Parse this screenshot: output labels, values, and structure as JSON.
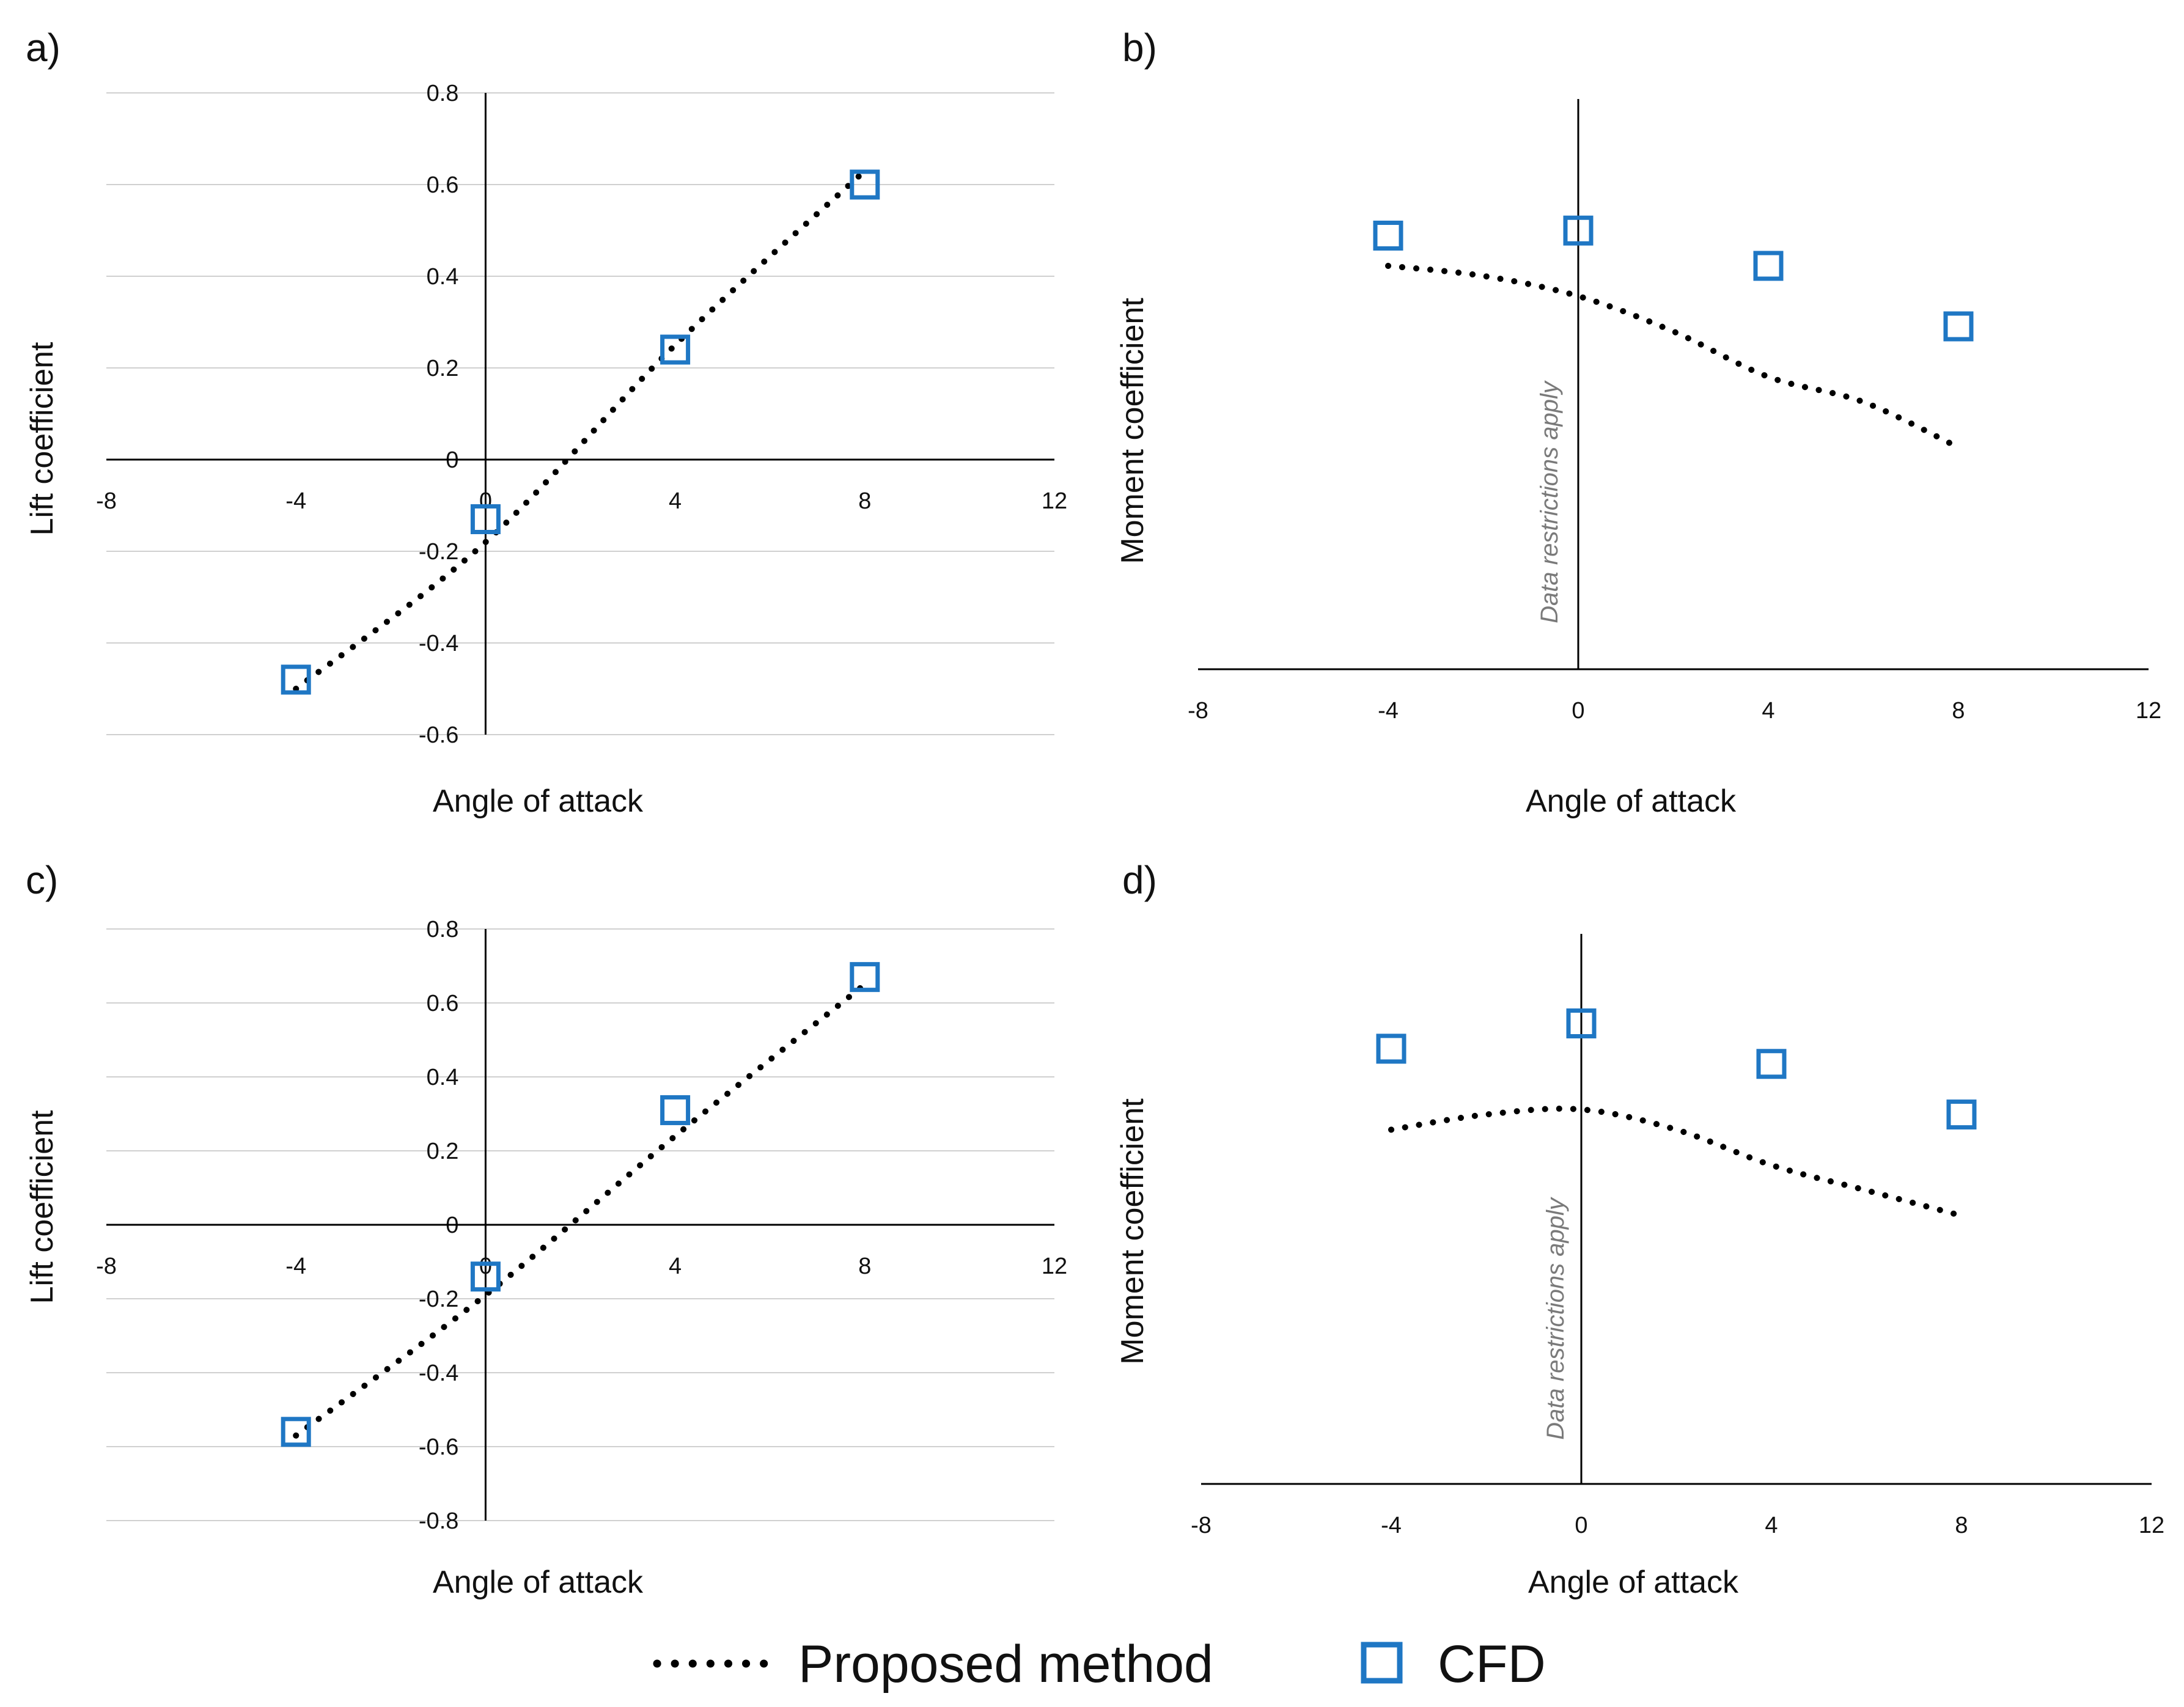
{
  "colors": {
    "cfd": "#1f77c4",
    "proposed": "#000000",
    "grid": "#d0d0d0",
    "axis": "#000000",
    "note": "#7a7a7a"
  },
  "legend": {
    "proposed_label": "Proposed method",
    "cfd_label": "CFD"
  },
  "chart_data": [
    {
      "id": "a",
      "type": "scatter",
      "panel_label": "a)",
      "xlabel": "Angle of attack",
      "ylabel": "Lift coefficient",
      "xlim": [
        -8,
        12
      ],
      "ylim": [
        -0.6,
        0.8
      ],
      "xticks": [
        -8,
        -4,
        0,
        4,
        8,
        12
      ],
      "yticks": [
        -0.6,
        -0.4,
        -0.2,
        0,
        0.2,
        0.4,
        0.6,
        0.8
      ],
      "grid": true,
      "note": "",
      "series": [
        {
          "name": "Proposed method",
          "style": "dotted-line",
          "x": [
            -4,
            0,
            4,
            8
          ],
          "y": [
            -0.5,
            -0.18,
            0.25,
            0.63
          ]
        },
        {
          "name": "CFD",
          "style": "square-marker",
          "x": [
            -4,
            0,
            4,
            8
          ],
          "y": [
            -0.48,
            -0.13,
            0.24,
            0.6
          ]
        }
      ]
    },
    {
      "id": "b",
      "type": "scatter",
      "panel_label": "b)",
      "xlabel": "Angle of attack",
      "ylabel": "Moment coefficient",
      "xlim": [
        -8,
        12
      ],
      "ylim": [
        0,
        1
      ],
      "xticks": [
        -8,
        -4,
        0,
        4,
        8,
        12
      ],
      "yticks": [],
      "grid": false,
      "note": "Data restrictions apply",
      "series": [
        {
          "name": "Proposed method",
          "style": "dotted-line",
          "x": [
            -4,
            -2,
            0,
            2,
            4,
            6,
            8
          ],
          "y": [
            0.8,
            0.78,
            0.74,
            0.67,
            0.58,
            0.53,
            0.44
          ]
        },
        {
          "name": "CFD",
          "style": "square-marker",
          "x": [
            -4,
            0,
            4,
            8
          ],
          "y": [
            0.86,
            0.87,
            0.8,
            0.68
          ]
        }
      ]
    },
    {
      "id": "c",
      "type": "scatter",
      "panel_label": "c)",
      "xlabel": "Angle of attack",
      "ylabel": "Lift coefficient",
      "xlim": [
        -8,
        12
      ],
      "ylim": [
        -0.8,
        0.8
      ],
      "xticks": [
        -8,
        -4,
        0,
        4,
        8,
        12
      ],
      "yticks": [
        -0.8,
        -0.6,
        -0.4,
        -0.2,
        0,
        0.2,
        0.4,
        0.6,
        0.8
      ],
      "grid": true,
      "note": "",
      "series": [
        {
          "name": "Proposed method",
          "style": "dotted-line",
          "x": [
            -4,
            0,
            4,
            8
          ],
          "y": [
            -0.57,
            -0.19,
            0.24,
            0.65
          ]
        },
        {
          "name": "CFD",
          "style": "square-marker",
          "x": [
            -4,
            0,
            4,
            8
          ],
          "y": [
            -0.56,
            -0.14,
            0.31,
            0.67
          ]
        }
      ]
    },
    {
      "id": "d",
      "type": "scatter",
      "panel_label": "d)",
      "xlabel": "Angle of attack",
      "ylabel": "Moment coefficient",
      "xlim": [
        -8,
        12
      ],
      "ylim": [
        0,
        1
      ],
      "xticks": [
        -8,
        -4,
        0,
        4,
        8,
        12
      ],
      "yticks": [],
      "grid": false,
      "note": "Data restrictions apply",
      "series": [
        {
          "name": "Proposed method",
          "style": "dotted-line",
          "x": [
            -4,
            -2,
            0,
            2,
            4,
            6,
            8
          ],
          "y": [
            0.7,
            0.73,
            0.74,
            0.7,
            0.63,
            0.58,
            0.53
          ]
        },
        {
          "name": "CFD",
          "style": "square-marker",
          "x": [
            -4,
            0,
            4,
            8
          ],
          "y": [
            0.86,
            0.91,
            0.83,
            0.73
          ]
        }
      ]
    }
  ]
}
